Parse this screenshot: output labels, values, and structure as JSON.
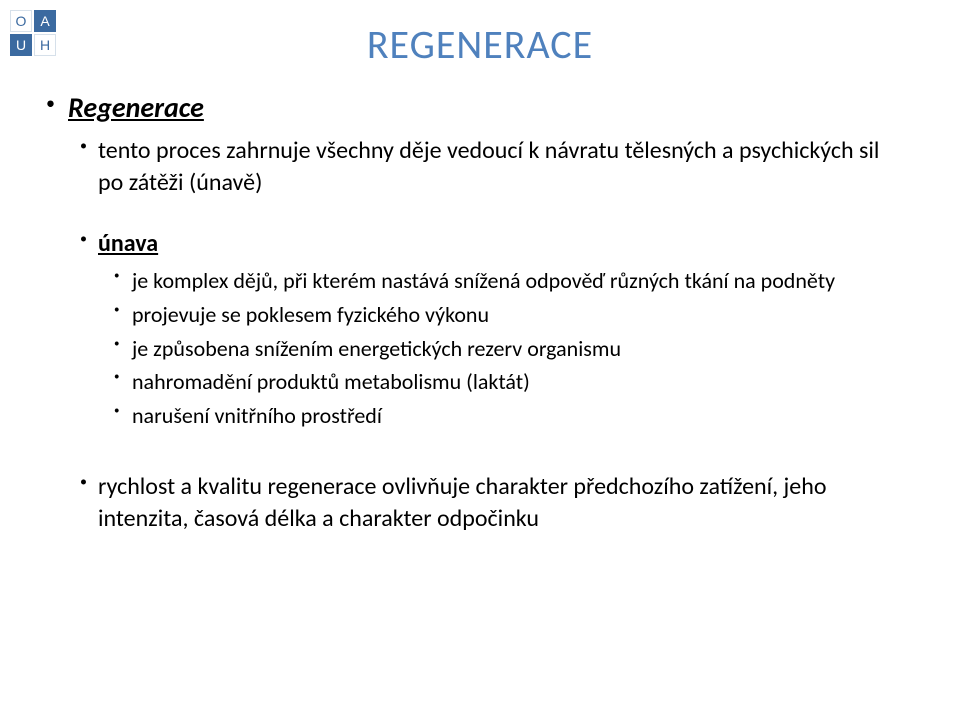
{
  "logo": {
    "tl": "O",
    "tr": "A",
    "bl": "U",
    "br": "H"
  },
  "title": "REGENERACE",
  "section1": {
    "head": "Regenerace",
    "line": "tento proces zahrnuje všechny děje vedoucí k návratu tělesných a psychických sil po zátěži (únavě)"
  },
  "section2": {
    "head": "únava",
    "items": [
      "je komplex dějů, při kterém nastává snížená odpověď různých tkání na podněty",
      "projevuje se poklesem fyzického výkonu",
      "je způsobena snížením energetických rezerv organismu",
      "nahromadění produktů metabolismu (laktát)",
      "narušení vnitřního prostředí"
    ]
  },
  "section3": {
    "line": "rychlost a kvalitu regenerace ovlivňuje  charakter předchozího zatížení, jeho intenzita, časová délka a charakter odpočinku"
  },
  "colors": {
    "title": "#4f81bd",
    "logo_blue": "#3b6aa0",
    "text": "#000000",
    "bg": "#ffffff"
  },
  "fontsize": {
    "title": 40,
    "l1": 28,
    "l2": 24,
    "l3": 22
  }
}
